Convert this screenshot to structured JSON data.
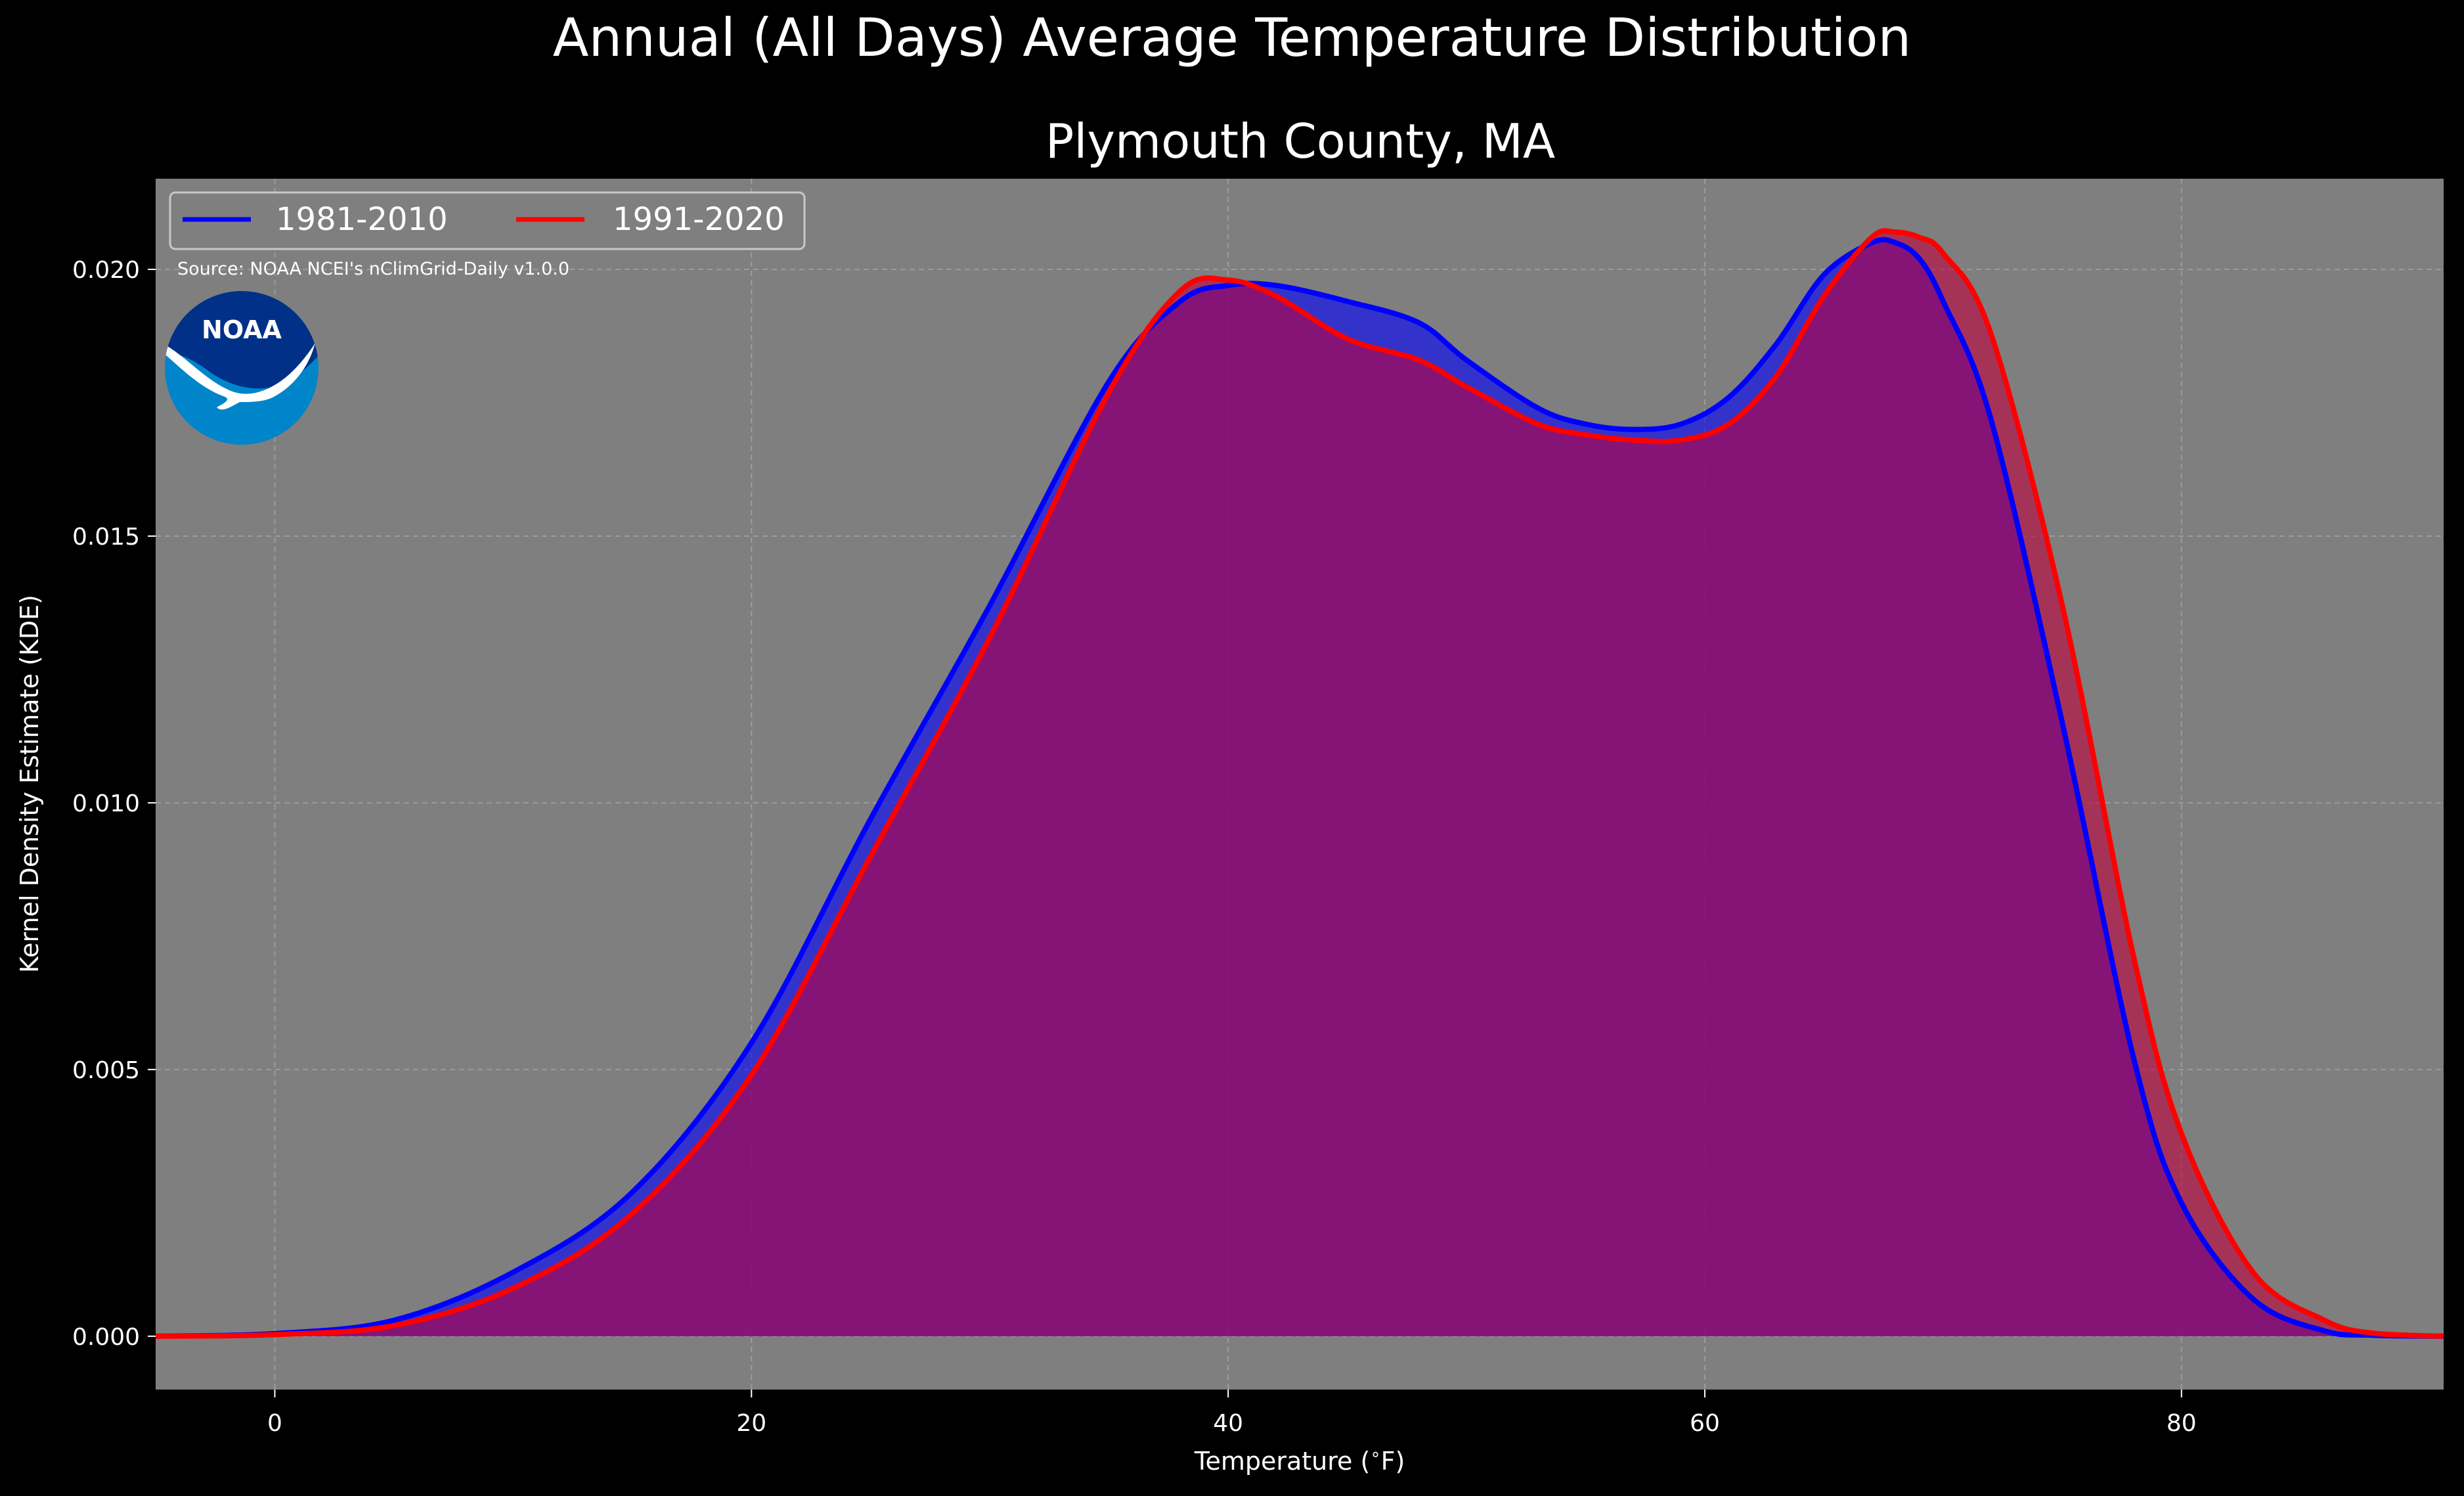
{
  "chart_data": {
    "type": "area",
    "title": "Annual (All Days) Average Temperature Distribution",
    "subtitle": "Plymouth County, MA",
    "xlabel": "Temperature ($^\\circ$F)",
    "ylabel": "Kernel Density Estimate (KDE)",
    "xlim": [
      -5,
      91
    ],
    "ylim": [
      -0.001,
      0.0217
    ],
    "xticks": [
      0,
      20,
      40,
      60,
      80
    ],
    "xtick_labels": [
      "0",
      "20",
      "40",
      "60",
      "80"
    ],
    "yticks": [
      0.0,
      0.005,
      0.01,
      0.015,
      0.02
    ],
    "ytick_labels": [
      "0.000",
      "0.005",
      "0.010",
      "0.015",
      "0.020"
    ],
    "grid": true,
    "legend_position": "top-left",
    "source": "Source: NOAA NCEI's nClimGrid-Daily v1.0.0",
    "logo_text": "NOAA",
    "background": "#7f7f7f",
    "x": [
      -5,
      0,
      5,
      10,
      15,
      20,
      25,
      30,
      35,
      38,
      40,
      42,
      45,
      48,
      50,
      53,
      55,
      57,
      59,
      61,
      63,
      65,
      67,
      68,
      69,
      70,
      72,
      75,
      78,
      80,
      83,
      86,
      88,
      91
    ],
    "series": [
      {
        "name": "1981-2010",
        "color": "#0000ff",
        "fill": "rgba(0,0,255,0.6)",
        "values": [
          0.0,
          5e-05,
          0.0003,
          0.0012,
          0.0027,
          0.0055,
          0.0097,
          0.0137,
          0.0179,
          0.0194,
          0.0197,
          0.0197,
          0.0194,
          0.019,
          0.0183,
          0.0174,
          0.0171,
          0.017,
          0.0171,
          0.0176,
          0.0186,
          0.0199,
          0.0205,
          0.0205,
          0.0202,
          0.0194,
          0.0172,
          0.0115,
          0.0052,
          0.0025,
          0.0007,
          0.0001,
          2e-05,
          0.0
        ]
      },
      {
        "name": "1991-2020",
        "color": "#ff0000",
        "fill": "rgba(190,0,60,0.6)",
        "values": [
          0.0,
          3e-05,
          0.0002,
          0.0009,
          0.0023,
          0.0049,
          0.009,
          0.0131,
          0.0177,
          0.0196,
          0.0198,
          0.0195,
          0.0187,
          0.0183,
          0.0178,
          0.0171,
          0.0169,
          0.0168,
          0.0168,
          0.0171,
          0.018,
          0.0195,
          0.0206,
          0.0207,
          0.0206,
          0.0203,
          0.0188,
          0.0137,
          0.0071,
          0.0038,
          0.0012,
          0.0003,
          6e-05,
          0.0
        ]
      }
    ]
  }
}
